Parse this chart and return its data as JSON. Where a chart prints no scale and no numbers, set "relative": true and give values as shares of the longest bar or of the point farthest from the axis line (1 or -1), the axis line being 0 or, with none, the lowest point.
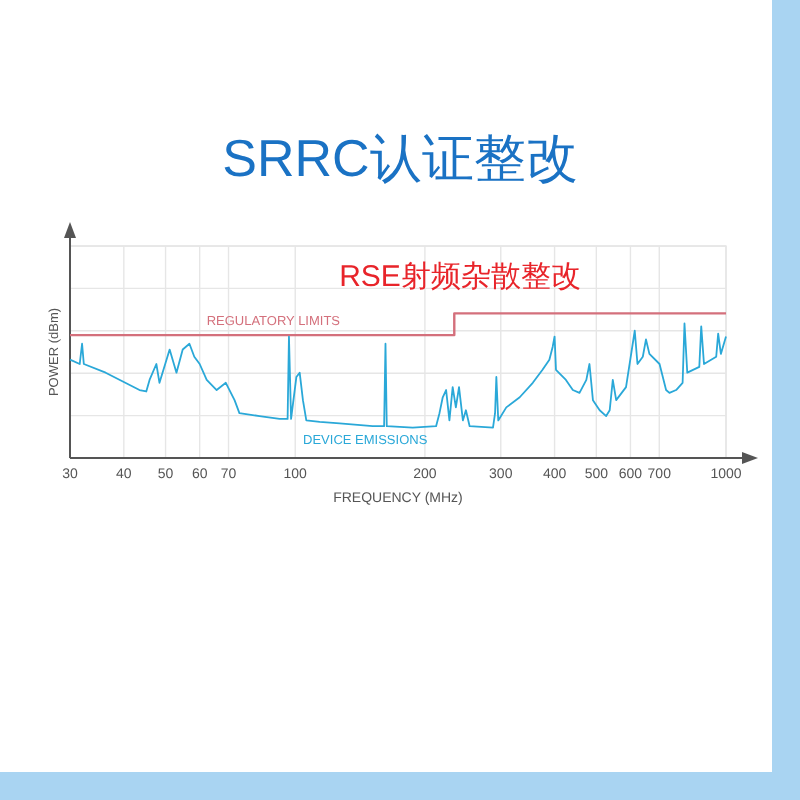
{
  "chart_data": {
    "type": "line",
    "title": "SRRC认证整改",
    "xlabel": "FREQUENCY (MHz)",
    "ylabel": "POWER (dBm)",
    "annotations": [
      "RSE射频杂散整改"
    ],
    "relative": true,
    "log": "x",
    "grid": true,
    "xlim": [
      30,
      1000
    ],
    "xticks": [
      30,
      40,
      50,
      60,
      70,
      100,
      200,
      300,
      400,
      500,
      600,
      700,
      1000
    ],
    "series": [
      {
        "name": "REGULATORY LIMITS",
        "type": "step",
        "color": "#d4707c",
        "x": [
          30,
          234,
          1000
        ],
        "values": [
          0.85,
          1,
          1
        ]
      },
      {
        "name": "DEVICE EMISSIONS",
        "color": "#2aa8d8",
        "x": [
          30,
          31.6,
          32,
          32.3,
          36.3,
          43.5,
          45.1,
          45.9,
          47.6,
          48.4,
          51.1,
          53,
          54.8,
          56.8,
          58.3,
          60,
          62.3,
          65.7,
          69,
          72.3,
          74.2,
          82.6,
          92,
          96,
          96.7,
          97.8,
          100.6,
          102.4,
          104.2,
          106.1,
          114,
          126.8,
          151.3,
          160.8,
          162,
          163.1,
          187.4,
          212.3,
          216.2,
          220,
          224,
          228,
          232,
          236,
          240,
          245,
          249,
          254,
          287.8,
          291,
          293,
          296,
          309,
          332,
          356,
          375,
          389,
          396,
          400,
          403,
          425,
          441,
          457,
          474,
          482,
          491,
          509,
          527,
          537,
          546,
          556,
          586,
          614,
          623,
          641,
          652,
          664,
          701,
          726,
          739,
          766,
          793,
          801,
          813,
          867,
          876,
          889,
          949,
          959,
          973,
          1000
        ],
        "values": [
          0.68,
          0.65,
          0.79,
          0.65,
          0.59,
          0.47,
          0.46,
          0.54,
          0.65,
          0.52,
          0.75,
          0.59,
          0.75,
          0.79,
          0.7,
          0.65,
          0.54,
          0.47,
          0.52,
          0.4,
          0.31,
          0.29,
          0.27,
          0.27,
          0.84,
          0.27,
          0.56,
          0.59,
          0.4,
          0.26,
          0.25,
          0.24,
          0.22,
          0.22,
          0.79,
          0.22,
          0.21,
          0.22,
          0.31,
          0.42,
          0.47,
          0.26,
          0.49,
          0.35,
          0.49,
          0.26,
          0.33,
          0.22,
          0.21,
          0.31,
          0.56,
          0.26,
          0.35,
          0.42,
          0.52,
          0.61,
          0.68,
          0.77,
          0.84,
          0.61,
          0.54,
          0.47,
          0.45,
          0.54,
          0.65,
          0.4,
          0.33,
          0.29,
          0.33,
          0.54,
          0.4,
          0.49,
          0.88,
          0.65,
          0.7,
          0.82,
          0.72,
          0.65,
          0.47,
          0.45,
          0.47,
          0.52,
          0.93,
          0.59,
          0.63,
          0.91,
          0.65,
          0.7,
          0.86,
          0.72,
          0.84
        ]
      }
    ]
  }
}
